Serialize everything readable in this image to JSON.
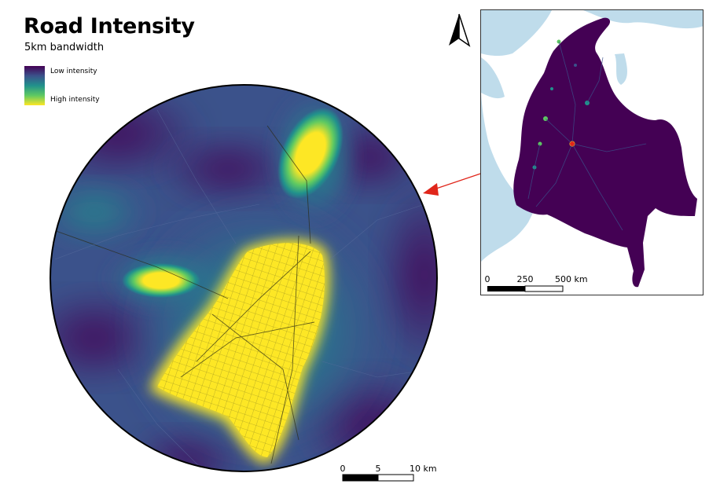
{
  "map": {
    "title": "Road Intensity",
    "subtitle": "5km bandwidth"
  },
  "legend": {
    "low_label": "Low intensity",
    "high_label": "High intensity",
    "ramp_colors": [
      "#440154",
      "#3b528b",
      "#21918c",
      "#5ec962",
      "#fde725"
    ]
  },
  "main_scalebar": {
    "labels": [
      "0",
      "5",
      "10 km"
    ]
  },
  "inset": {
    "scalebar": {
      "labels": [
        "0",
        "250",
        "500 km"
      ]
    },
    "north_arrow": "north-arrow-icon"
  },
  "colors": {
    "water": "#bfdceb",
    "land_neighbor": "#ffffff",
    "country_fill": "#440154",
    "high": "#fde725",
    "pointer": "#e0261b"
  }
}
